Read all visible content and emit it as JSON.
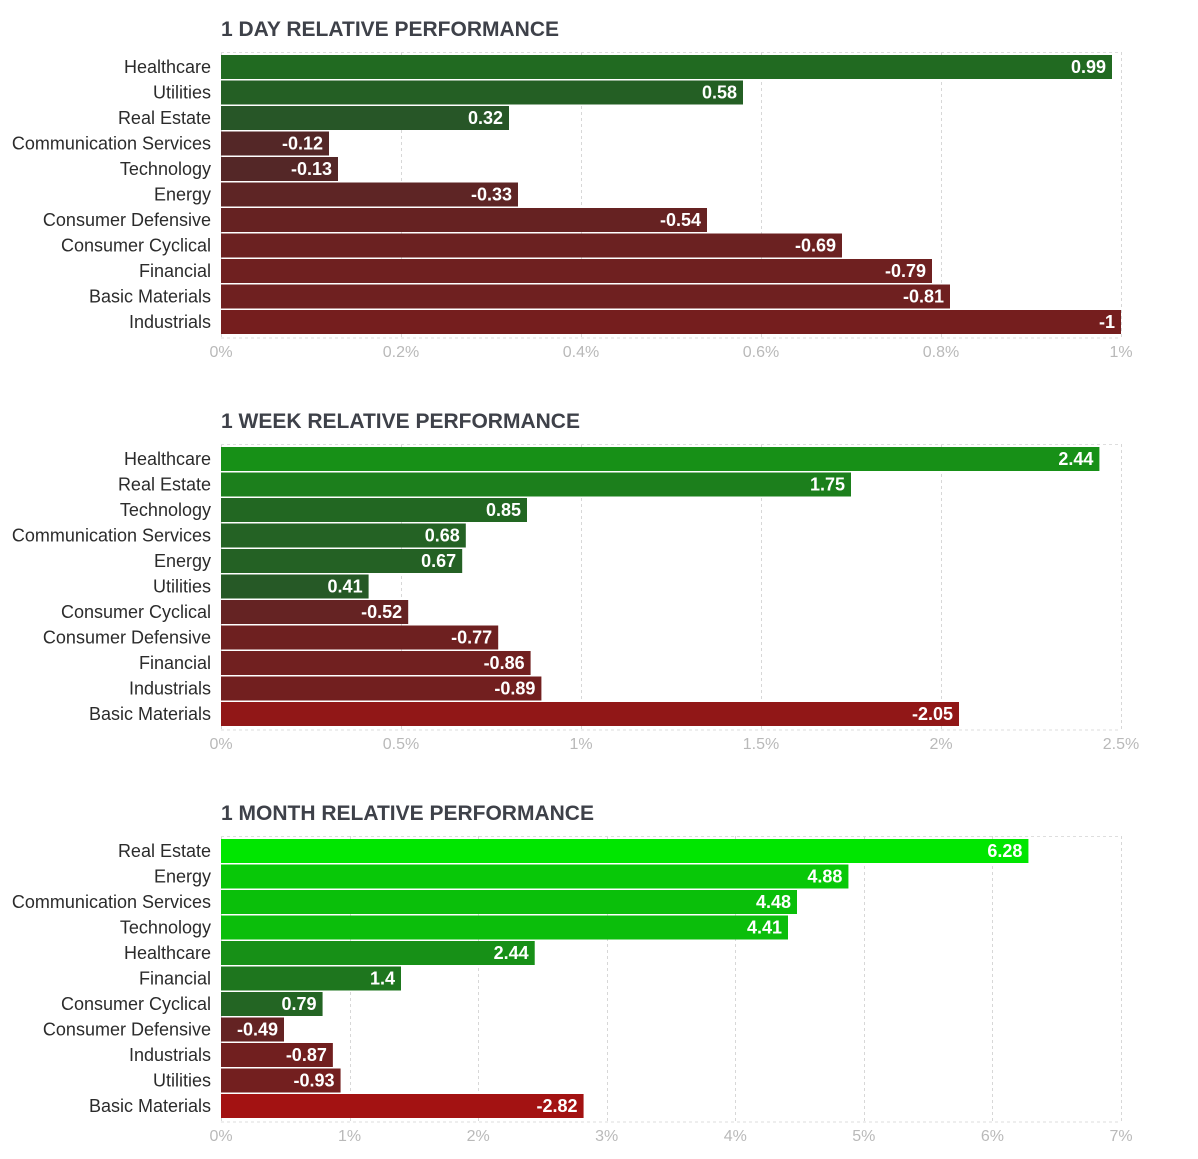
{
  "colors": {
    "positive_dark": "#2a4a2a",
    "positive_bright": "#00e600",
    "negative_dark": "#4a2a2a",
    "negative_bright": "#e60000"
  },
  "chart_data": [
    {
      "type": "bar",
      "orientation": "horizontal",
      "title": "1 DAY RELATIVE PERFORMANCE",
      "categories": [
        "Healthcare",
        "Utilities",
        "Real Estate",
        "Communication Services",
        "Technology",
        "Energy",
        "Consumer Defensive",
        "Consumer Cyclical",
        "Financial",
        "Basic Materials",
        "Industrials"
      ],
      "values": [
        0.99,
        0.58,
        0.32,
        -0.12,
        -0.13,
        -0.33,
        -0.54,
        -0.69,
        -0.79,
        -0.81,
        -1
      ],
      "value_labels": [
        "0.99",
        "0.58",
        "0.32",
        "-0.12",
        "-0.13",
        "-0.33",
        "-0.54",
        "-0.69",
        "-0.79",
        "-0.81",
        "-1"
      ],
      "bar_length": "absolute value",
      "xlim": [
        0,
        1
      ],
      "xticks": [
        0,
        0.2,
        0.4,
        0.6,
        0.8,
        1
      ],
      "xtick_labels": [
        "0%",
        "0.2%",
        "0.4%",
        "0.6%",
        "0.8%",
        "1%"
      ],
      "xlabel": "",
      "ylabel": "",
      "grid": true
    },
    {
      "type": "bar",
      "orientation": "horizontal",
      "title": "1 WEEK RELATIVE PERFORMANCE",
      "categories": [
        "Healthcare",
        "Real Estate",
        "Technology",
        "Communication Services",
        "Energy",
        "Utilities",
        "Consumer Cyclical",
        "Consumer Defensive",
        "Financial",
        "Industrials",
        "Basic Materials"
      ],
      "values": [
        2.44,
        1.75,
        0.85,
        0.68,
        0.67,
        0.41,
        -0.52,
        -0.77,
        -0.86,
        -0.89,
        -2.05
      ],
      "value_labels": [
        "2.44",
        "1.75",
        "0.85",
        "0.68",
        "0.67",
        "0.41",
        "-0.52",
        "-0.77",
        "-0.86",
        "-0.89",
        "-2.05"
      ],
      "bar_length": "absolute value",
      "xlim": [
        0,
        2.5
      ],
      "xticks": [
        0,
        0.5,
        1,
        1.5,
        2,
        2.5
      ],
      "xtick_labels": [
        "0%",
        "0.5%",
        "1%",
        "1.5%",
        "2%",
        "2.5%"
      ],
      "xlabel": "",
      "ylabel": "",
      "grid": true
    },
    {
      "type": "bar",
      "orientation": "horizontal",
      "title": "1 MONTH RELATIVE PERFORMANCE",
      "categories": [
        "Real Estate",
        "Energy",
        "Communication Services",
        "Technology",
        "Healthcare",
        "Financial",
        "Consumer Cyclical",
        "Consumer Defensive",
        "Industrials",
        "Utilities",
        "Basic Materials"
      ],
      "values": [
        6.28,
        4.88,
        4.48,
        4.41,
        2.44,
        1.4,
        0.79,
        -0.49,
        -0.87,
        -0.93,
        -2.82
      ],
      "value_labels": [
        "6.28",
        "4.88",
        "4.48",
        "4.41",
        "2.44",
        "1.4",
        "0.79",
        "-0.49",
        "-0.87",
        "-0.93",
        "-2.82"
      ],
      "bar_length": "absolute value",
      "xlim": [
        0,
        7
      ],
      "xticks": [
        0,
        1,
        2,
        3,
        4,
        5,
        6,
        7
      ],
      "xtick_labels": [
        "0%",
        "1%",
        "2%",
        "3%",
        "4%",
        "5%",
        "6%",
        "7%"
      ],
      "xlabel": "",
      "ylabel": "",
      "grid": true
    }
  ]
}
